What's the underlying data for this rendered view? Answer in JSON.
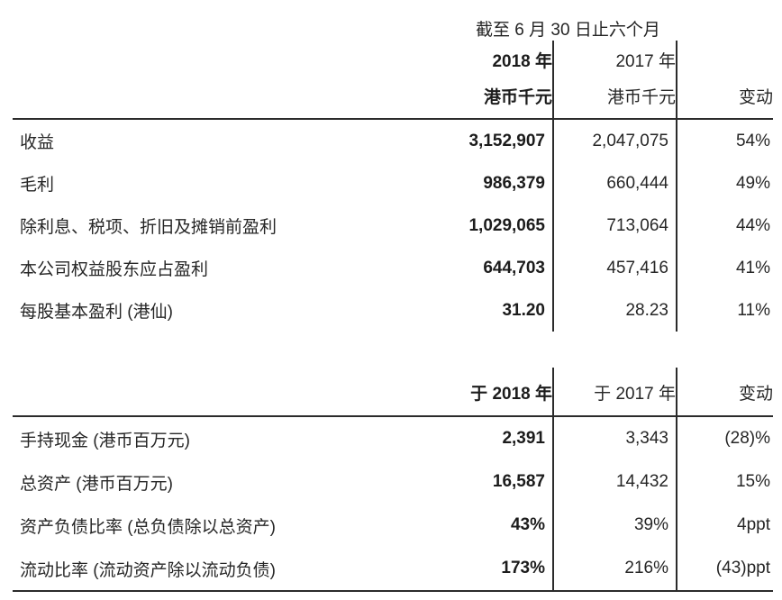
{
  "caption": "截至 6 月 30 日止六个月",
  "section1": {
    "headers": {
      "y2018_line1": "2018 年",
      "y2018_line2": "港币千元",
      "y2017_line1": "2017 年",
      "y2017_line2": "港币千元",
      "change": "变动"
    },
    "rows": [
      {
        "label": "收益",
        "v2018": "3,152,907",
        "v2017": "2,047,075",
        "change": "54%"
      },
      {
        "label": "毛利",
        "v2018": "986,379",
        "v2017": "660,444",
        "change": "49%"
      },
      {
        "label": "除利息、税项、折旧及摊销前盈利",
        "v2018": "1,029,065",
        "v2017": "713,064",
        "change": "44%"
      },
      {
        "label": "本公司权益股东应占盈利",
        "v2018": "644,703",
        "v2017": "457,416",
        "change": "41%"
      },
      {
        "label": "每股基本盈利 (港仙)",
        "v2018": "31.20",
        "v2017": "28.23",
        "change": "11%"
      }
    ]
  },
  "section2": {
    "headers": {
      "y2018": "于 2018 年",
      "y2017": "于 2017 年",
      "change": "变动"
    },
    "rows": [
      {
        "label": "手持现金 (港币百万元)",
        "v2018": "2,391",
        "v2017": "3,343",
        "change": "(28)%"
      },
      {
        "label": "总资产 (港币百万元)",
        "v2018": "16,587",
        "v2017": "14,432",
        "change": "15%"
      },
      {
        "label": "资产负债比率 (总负债除以总资产)",
        "v2018": "43%",
        "v2017": "39%",
        "change": "4ppt"
      },
      {
        "label": "流动比率 (流动资产除以流动负债)",
        "v2018": "173%",
        "v2017": "216%",
        "change": "(43)ppt"
      }
    ]
  },
  "colors": {
    "text": "#262626",
    "bold_text": "#1c1c1c",
    "rule": "#2b2b2b",
    "background": "#ffffff"
  }
}
